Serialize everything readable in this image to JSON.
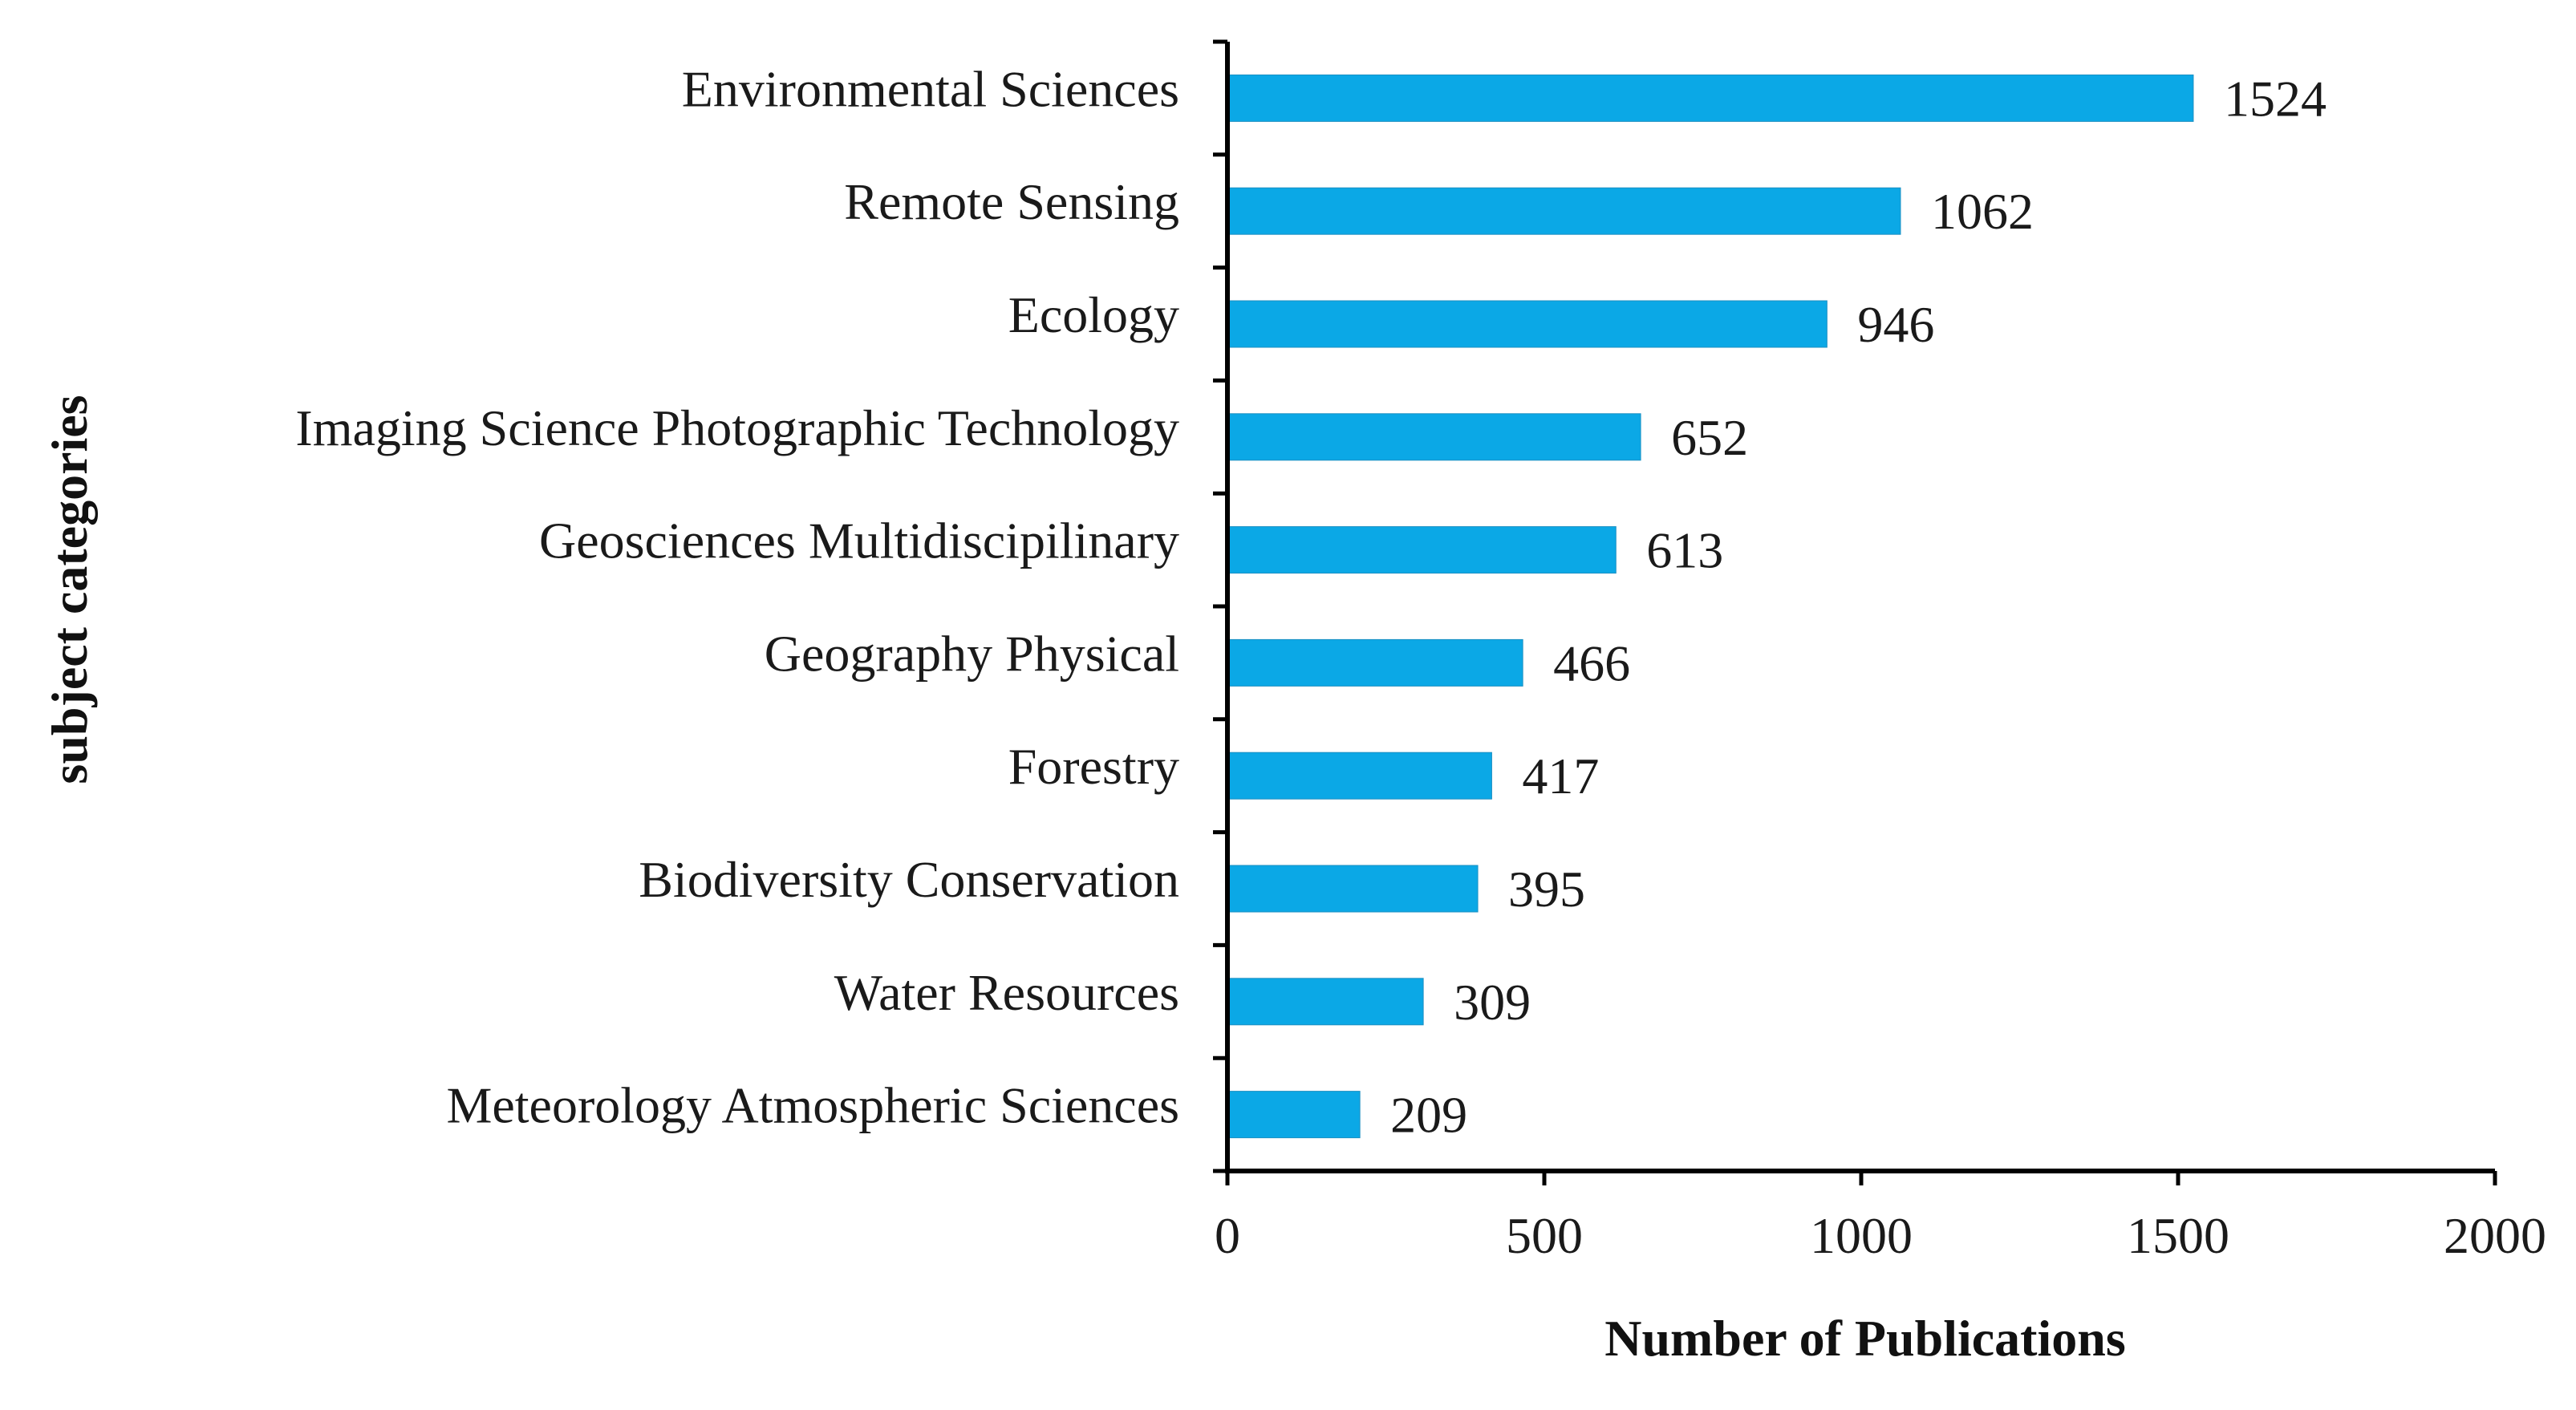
{
  "chart_data": {
    "type": "bar",
    "orientation": "horizontal",
    "categories": [
      "Environmental Sciences",
      "Remote Sensing",
      "Ecology",
      "Imaging Science Photographic Technology",
      "Geosciences Multidiscipilinary",
      "Geography Physical",
      "Forestry",
      "Biodiversity Conservation",
      "Water Resources",
      "Meteorology Atmospheric Sciences"
    ],
    "values": [
      1524,
      1062,
      946,
      652,
      613,
      466,
      417,
      395,
      309,
      209
    ],
    "value_labels": [
      "1524",
      "1062",
      "946",
      "652",
      "613",
      "466",
      "417",
      "395",
      "309",
      "209"
    ],
    "xlabel": "Number   of Publications",
    "ylabel": "subject categories",
    "xlim": [
      0,
      2000
    ],
    "xticks": [
      0,
      500,
      1000,
      1500,
      2000
    ],
    "xtick_labels": [
      "0",
      "500",
      "1000",
      "1500",
      "2000"
    ],
    "grid": false,
    "legend": "none",
    "bar_color": "#0BA8E6"
  }
}
